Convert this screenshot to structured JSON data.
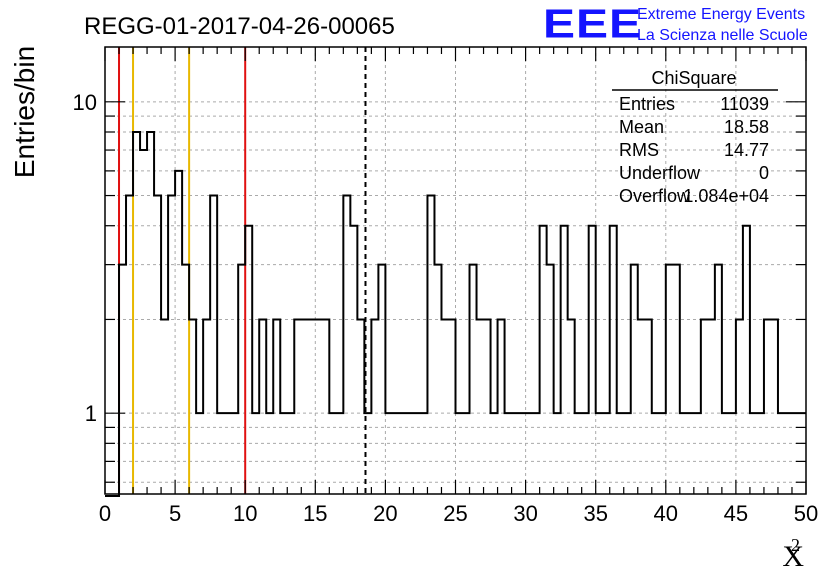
{
  "chart_data": {
    "type": "histogram",
    "title": "REGG-01-2017-04-26-00065",
    "xlabel_base": "X",
    "xlabel_sup": "2",
    "ylabel": "Entries/bin",
    "xlim": [
      0,
      50
    ],
    "ylim": [
      0.55,
      15
    ],
    "yscale": "log",
    "grid": true,
    "x_ticks": [
      "0",
      "5",
      "10",
      "15",
      "20",
      "25",
      "30",
      "35",
      "40",
      "45",
      "50"
    ],
    "y_ticks": [
      "1",
      "10"
    ],
    "bin_width": 0.5,
    "bin_start": 0,
    "values": [
      0,
      0,
      3,
      5,
      8,
      7,
      8,
      5,
      2,
      5,
      6,
      3,
      2,
      1,
      2,
      5,
      1,
      1,
      1,
      3,
      4,
      1,
      2,
      1,
      2,
      1,
      1,
      2,
      2,
      2,
      2,
      2,
      1,
      1,
      5,
      4,
      2,
      1,
      2,
      3,
      1,
      1,
      1,
      1,
      1,
      1,
      5,
      3,
      2,
      2,
      1,
      1,
      3,
      2,
      2,
      1,
      2,
      1,
      1,
      1,
      1,
      1,
      4,
      3,
      1,
      4,
      2,
      1,
      1,
      4,
      1,
      1,
      4,
      1,
      1,
      3,
      2,
      2,
      1,
      1,
      3,
      3,
      1,
      1,
      1,
      2,
      2,
      3,
      1,
      1,
      2,
      4,
      1,
      1,
      2,
      2,
      1,
      1,
      1,
      1
    ],
    "lines": [
      {
        "x": 1,
        "color": "#e01010"
      },
      {
        "x": 2,
        "color": "#e8b800"
      },
      {
        "x": 6,
        "color": "#e8b800"
      },
      {
        "x": 10,
        "color": "#e01010"
      },
      {
        "x": 18.58,
        "color": "#000000",
        "style": "dashed"
      }
    ],
    "stats": {
      "name": "ChiSquare",
      "rows": [
        {
          "label": "Entries",
          "value": "11039"
        },
        {
          "label": "Mean",
          "value": "18.58"
        },
        {
          "label": "RMS",
          "value": "14.77"
        },
        {
          "label": "Underflow",
          "value": "0"
        },
        {
          "label": "Overflow",
          "value": "1.084e+04"
        }
      ]
    }
  },
  "logo": {
    "mark": "EEE",
    "line1": "Extreme Energy Events",
    "line2": "La Scienza nelle Scuole",
    "color": "#1414ff"
  }
}
